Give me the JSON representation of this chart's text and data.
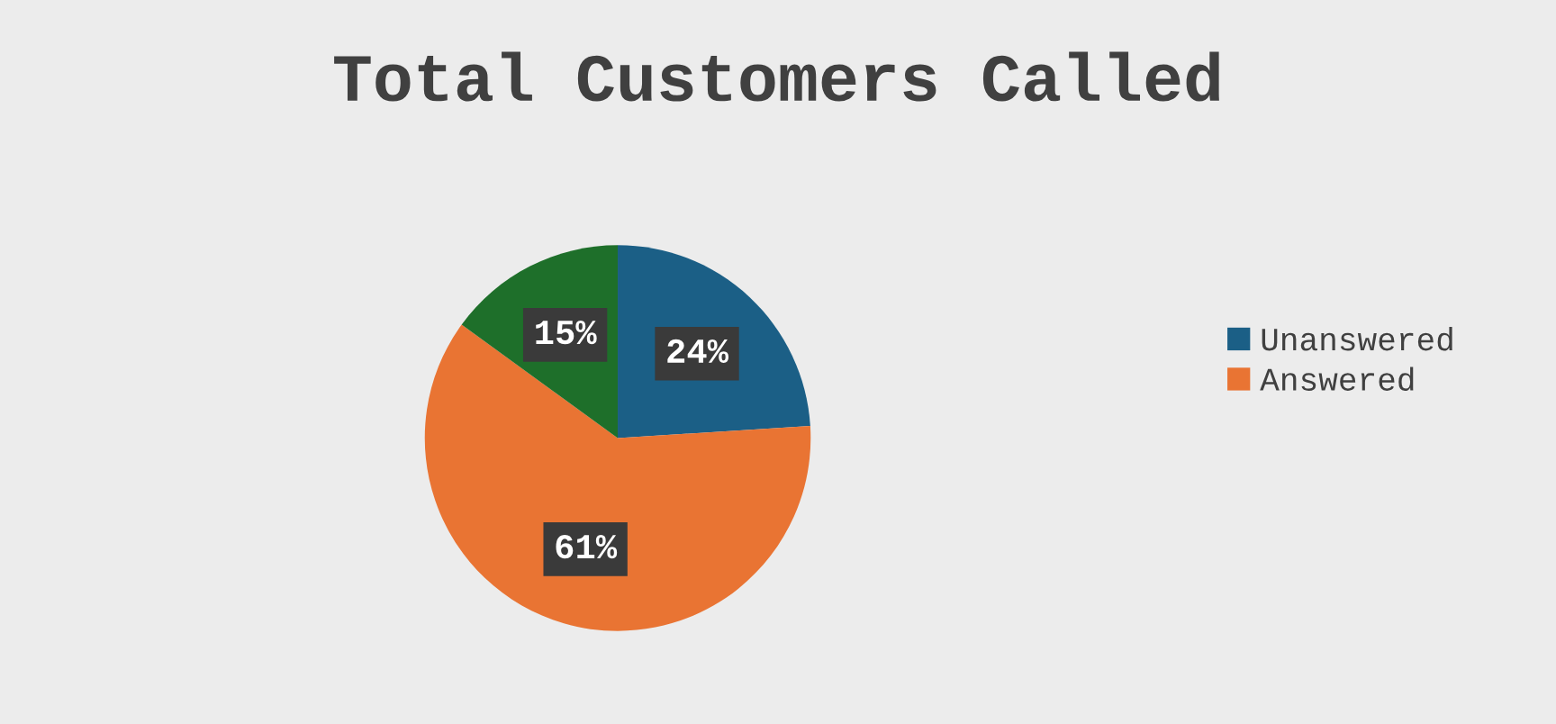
{
  "chart_data": {
    "type": "pie",
    "title": "Total Customers Called",
    "categories": [
      "Unanswered",
      "Answered",
      null
    ],
    "values": [
      24,
      61,
      15
    ],
    "colors": [
      "#1b5f86",
      "#e97433",
      "#1e6f2a"
    ],
    "value_labels": [
      "24%",
      "61%",
      "15%"
    ],
    "legend": "right"
  }
}
